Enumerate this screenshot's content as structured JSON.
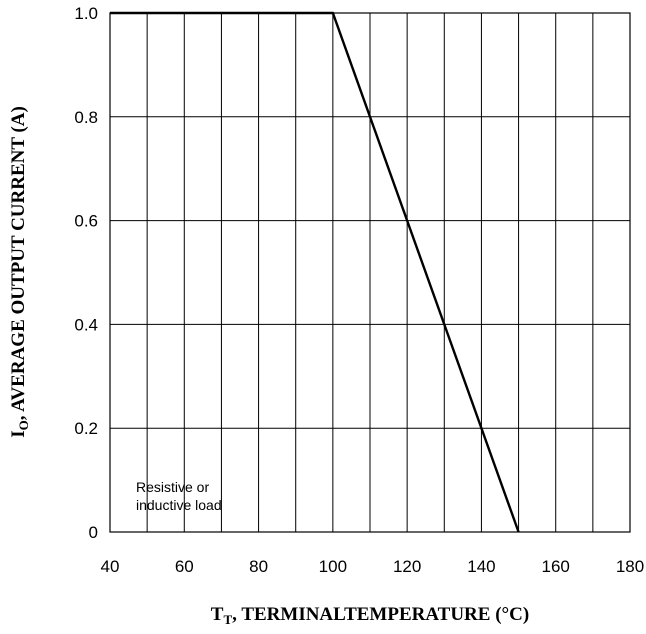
{
  "chart_data": {
    "type": "line",
    "xlabel_main": "T",
    "xlabel_sub": "T",
    "xlabel_rest": ", TERMINALTEMPERATURE (°C)",
    "ylabel_main": "I",
    "ylabel_sub": "O",
    "ylabel_rest": ", AVERAGE OUTPUT CURRENT (A)",
    "xlim": [
      40,
      180
    ],
    "ylim": [
      0,
      1.0
    ],
    "x_ticks": [
      40,
      60,
      80,
      100,
      120,
      140,
      160,
      180
    ],
    "x_tick_labels": [
      "40",
      "60",
      "80",
      "100",
      "120",
      "140",
      "160",
      "180"
    ],
    "y_ticks": [
      0,
      0.2,
      0.4,
      0.6,
      0.8,
      1.0
    ],
    "y_tick_labels": [
      "0",
      "0.2",
      "0.4",
      "0.6",
      "0.8",
      "1.0"
    ],
    "x_minor_step": 10,
    "grid": true,
    "series": [
      {
        "x": [
          40,
          100,
          150
        ],
        "y": [
          1.0,
          1.0,
          0.0
        ],
        "color": "#000000"
      }
    ],
    "annotation": {
      "lines": [
        "Resistive or",
        "inductive load"
      ]
    }
  }
}
